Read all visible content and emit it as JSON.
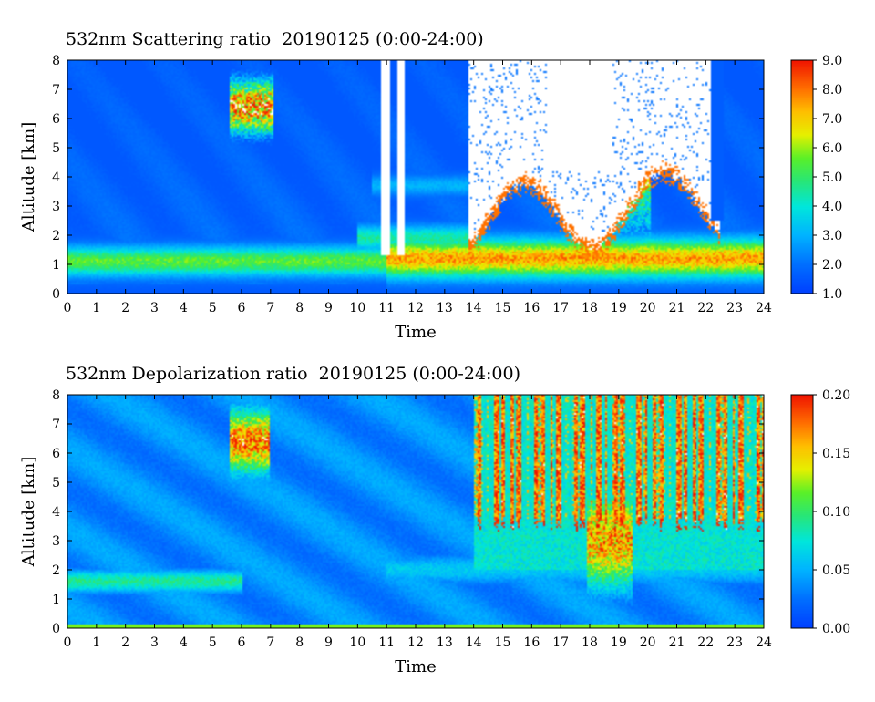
{
  "chart_data": [
    {
      "type": "heatmap",
      "title": "532nm Scattering ratio  20190125 (0:00-24:00)",
      "xlabel": "Time",
      "ylabel": "Altitude [km]",
      "xlim": [
        0,
        24
      ],
      "ylim": [
        0,
        8
      ],
      "xticks": [
        0,
        1,
        2,
        3,
        4,
        5,
        6,
        7,
        8,
        9,
        10,
        11,
        12,
        13,
        14,
        15,
        16,
        17,
        18,
        19,
        20,
        21,
        22,
        23,
        24
      ],
      "yticks": [
        0,
        1,
        2,
        3,
        4,
        5,
        6,
        7,
        8
      ],
      "colorbar": {
        "range": [
          1.0,
          9.0
        ],
        "ticks": [
          "1.0",
          "2.0",
          "3.0",
          "4.0",
          "5.0",
          "6.0",
          "7.0",
          "8.0",
          "9.0"
        ]
      },
      "features": [
        {
          "kind": "layer",
          "t0": 0,
          "t1": 14,
          "alt": 1.1,
          "width": 0.35,
          "value": 5.5
        },
        {
          "kind": "layer",
          "t0": 11,
          "t1": 24,
          "alt": 1.2,
          "width": 0.45,
          "value": 7.5
        },
        {
          "kind": "layer",
          "t0": 10,
          "t1": 14,
          "alt": 1.9,
          "width": 0.3,
          "value": 4.5
        },
        {
          "kind": "layer",
          "t0": 10.5,
          "t1": 14,
          "alt": 3.7,
          "width": 0.25,
          "value": 3.0
        },
        {
          "kind": "cloud",
          "t0": 5.6,
          "t1": 7.1,
          "alt": 6.4,
          "width": 0.7,
          "value": 8.5
        },
        {
          "kind": "cloud",
          "t0": 18.2,
          "t1": 20.1,
          "alt": 4.5,
          "width": 2.0,
          "value": 6.0
        },
        {
          "kind": "saturated",
          "t0": 13.8,
          "t1": 22.5,
          "alt_top": 8,
          "alt_bottom": 2.2,
          "value": 9.5
        }
      ]
    },
    {
      "type": "heatmap",
      "title": "532nm Depolarization ratio  20190125 (0:00-24:00)",
      "xlabel": "Time",
      "ylabel": "Altitude [km]",
      "xlim": [
        0,
        24
      ],
      "ylim": [
        0,
        8
      ],
      "xticks": [
        0,
        1,
        2,
        3,
        4,
        5,
        6,
        7,
        8,
        9,
        10,
        11,
        12,
        13,
        14,
        15,
        16,
        17,
        18,
        19,
        20,
        21,
        22,
        23,
        24
      ],
      "yticks": [
        0,
        1,
        2,
        3,
        4,
        5,
        6,
        7,
        8
      ],
      "colorbar": {
        "range": [
          0.0,
          0.2
        ],
        "ticks": [
          "0.00",
          "0.05",
          "0.10",
          "0.15",
          "0.20"
        ]
      },
      "features": [
        {
          "kind": "layer",
          "t0": 0,
          "t1": 6,
          "alt": 1.6,
          "width": 0.3,
          "value": 0.09
        },
        {
          "kind": "layer",
          "t0": 11,
          "t1": 24,
          "alt": 2.0,
          "width": 0.4,
          "value": 0.06
        },
        {
          "kind": "cloud",
          "t0": 5.6,
          "t1": 7.0,
          "alt": 6.4,
          "width": 0.8,
          "value": 0.18
        },
        {
          "kind": "streaks",
          "t0": 14,
          "t1": 24,
          "alt_top": 8,
          "alt_bottom": 3.8,
          "value": 0.19
        },
        {
          "kind": "cloud",
          "t0": 17.9,
          "t1": 19.5,
          "alt": 3.0,
          "width": 1.2,
          "value": 0.17
        }
      ]
    }
  ]
}
